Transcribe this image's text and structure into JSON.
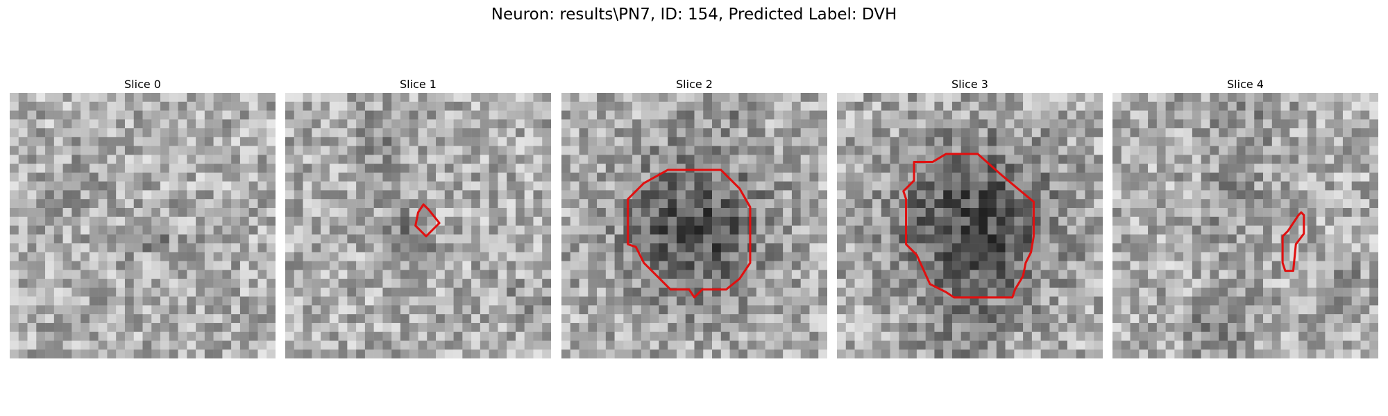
{
  "figure": {
    "title": "Neuron: results\\PN7, ID: 154, Predicted Label: DVH"
  },
  "panels": [
    {
      "title": "Slice 0",
      "contour": null
    },
    {
      "title": "Slice 1",
      "contour": [
        [
          0.52,
          0.42
        ],
        [
          0.54,
          0.44
        ],
        [
          0.58,
          0.49
        ],
        [
          0.53,
          0.54
        ],
        [
          0.49,
          0.5
        ],
        [
          0.5,
          0.45
        ]
      ]
    },
    {
      "title": "Slice 2",
      "contour": [
        [
          0.4,
          0.29
        ],
        [
          0.6,
          0.29
        ],
        [
          0.67,
          0.36
        ],
        [
          0.71,
          0.43
        ],
        [
          0.71,
          0.64
        ],
        [
          0.67,
          0.7
        ],
        [
          0.62,
          0.74
        ],
        [
          0.53,
          0.74
        ],
        [
          0.5,
          0.77
        ],
        [
          0.48,
          0.74
        ],
        [
          0.41,
          0.74
        ],
        [
          0.31,
          0.64
        ],
        [
          0.28,
          0.58
        ],
        [
          0.25,
          0.57
        ],
        [
          0.25,
          0.4
        ],
        [
          0.31,
          0.34
        ]
      ]
    },
    {
      "title": "Slice 3",
      "contour": [
        [
          0.29,
          0.26
        ],
        [
          0.36,
          0.26
        ],
        [
          0.41,
          0.23
        ],
        [
          0.53,
          0.23
        ],
        [
          0.62,
          0.31
        ],
        [
          0.74,
          0.41
        ],
        [
          0.74,
          0.54
        ],
        [
          0.73,
          0.6
        ],
        [
          0.71,
          0.64
        ],
        [
          0.7,
          0.69
        ],
        [
          0.67,
          0.74
        ],
        [
          0.66,
          0.77
        ],
        [
          0.44,
          0.77
        ],
        [
          0.41,
          0.75
        ],
        [
          0.35,
          0.72
        ],
        [
          0.3,
          0.61
        ],
        [
          0.26,
          0.57
        ],
        [
          0.26,
          0.4
        ],
        [
          0.25,
          0.37
        ],
        [
          0.29,
          0.33
        ]
      ]
    },
    {
      "title": "Slice 4",
      "contour": [
        [
          0.71,
          0.45
        ],
        [
          0.72,
          0.46
        ],
        [
          0.72,
          0.53
        ],
        [
          0.69,
          0.57
        ],
        [
          0.68,
          0.67
        ],
        [
          0.65,
          0.67
        ],
        [
          0.64,
          0.64
        ],
        [
          0.64,
          0.54
        ],
        [
          0.66,
          0.52
        ],
        [
          0.7,
          0.46
        ]
      ]
    }
  ],
  "colors": {
    "contour": "#e01010"
  }
}
